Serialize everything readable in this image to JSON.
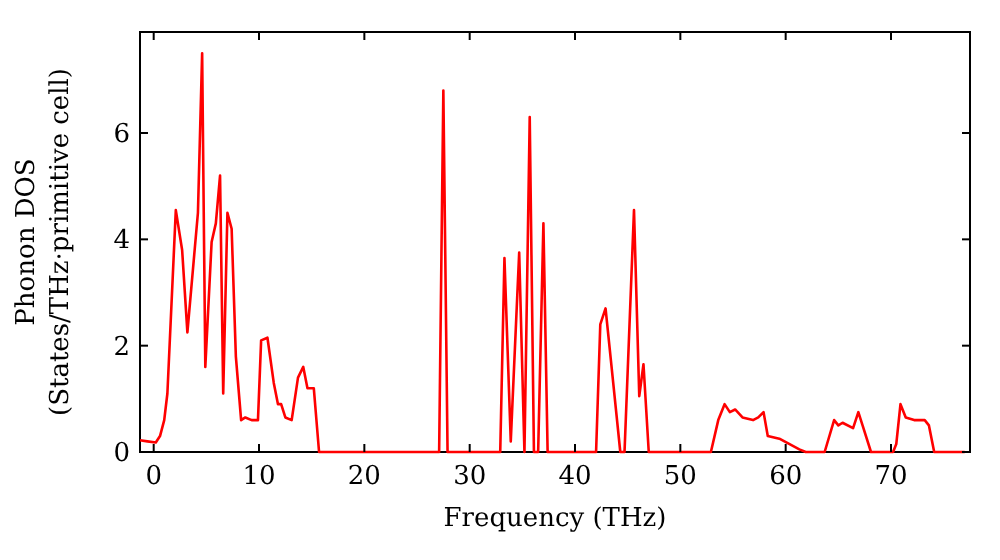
{
  "chart_data": {
    "type": "line",
    "xlabel": "Frequency (THz)",
    "ylabel": "Phonon DOS\n(States/THz·primitive cell)",
    "xlim": [
      -1.3,
      77.5
    ],
    "ylim": [
      0,
      7.9
    ],
    "xticks": [
      0,
      10,
      20,
      30,
      40,
      50,
      60,
      70
    ],
    "yticks": [
      0,
      2,
      4,
      6
    ],
    "grid": false,
    "marker": "none",
    "line_style": "solid",
    "series": [
      {
        "color": "#ff0000",
        "x": [
          -1.3,
          -0.6,
          0.2,
          0.6,
          1,
          1.3,
          2.1,
          2.7,
          3.2,
          3.8,
          4.2,
          4.6,
          4.9,
          5.5,
          5.9,
          6.3,
          6.6,
          7.0,
          7.4,
          7.8,
          8.3,
          8.7,
          9.3,
          9.9,
          10.2,
          10.8,
          11.4,
          11.8,
          12.1,
          12.5,
          13.1,
          13.7,
          14.2,
          14.6,
          15.2,
          15.7,
          27.1,
          27.5,
          27.9,
          32.9,
          33.3,
          33.9,
          34.7,
          35.2,
          35.7,
          36.1,
          36.5,
          37.0,
          37.4,
          42.0,
          42.4,
          42.9,
          43.6,
          44.3,
          44.7,
          45.6,
          46.1,
          46.5,
          47.0,
          52.9,
          53.6,
          54.2,
          54.7,
          55.2,
          55.9,
          56.9,
          57.4,
          57.9,
          58.3,
          59.4,
          61.3,
          61.9,
          63.7,
          64.6,
          65.0,
          65.4,
          66.4,
          66.9,
          67.3,
          68.1,
          70.2,
          70.5,
          70.9,
          71.4,
          72.2,
          73.2,
          73.6,
          74.1,
          77.0
        ],
        "values": [
          0.22,
          0.2,
          0.18,
          0.3,
          0.6,
          1.1,
          4.55,
          3.8,
          2.25,
          3.6,
          4.5,
          7.5,
          1.6,
          3.95,
          4.3,
          5.2,
          1.1,
          4.5,
          4.2,
          1.8,
          0.6,
          0.65,
          0.6,
          0.6,
          2.1,
          2.15,
          1.3,
          0.9,
          0.9,
          0.65,
          0.6,
          1.4,
          1.6,
          1.2,
          1.2,
          0,
          0,
          6.8,
          0,
          0,
          3.65,
          0.2,
          3.75,
          0,
          6.3,
          0,
          0,
          4.3,
          0,
          0,
          2.4,
          2.7,
          1.35,
          0,
          0,
          4.55,
          1.05,
          1.65,
          0,
          0,
          0.6,
          0.9,
          0.75,
          0.8,
          0.65,
          0.6,
          0.65,
          0.75,
          0.3,
          0.25,
          0.05,
          0,
          0,
          0.6,
          0.5,
          0.55,
          0.45,
          0.75,
          0.5,
          0,
          0,
          0.15,
          0.9,
          0.65,
          0.6,
          0.6,
          0.5,
          0,
          0
        ]
      }
    ]
  }
}
